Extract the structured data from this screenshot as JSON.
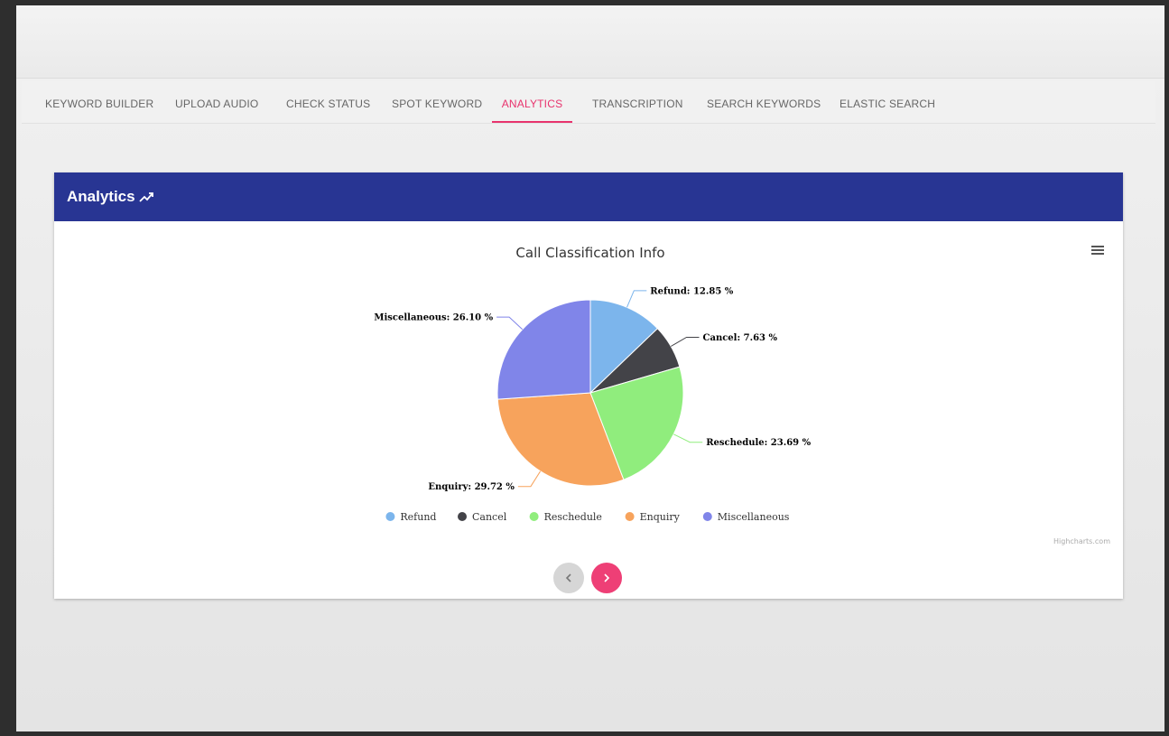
{
  "tabs": [
    {
      "label": "KEYWORD BUILDER"
    },
    {
      "label": "UPLOAD AUDIO"
    },
    {
      "label": "CHECK STATUS"
    },
    {
      "label": "SPOT KEYWORD"
    },
    {
      "label": "ANALYTICS"
    },
    {
      "label": "TRANSCRIPTION"
    },
    {
      "label": "SEARCH KEYWORDS"
    },
    {
      "label": "ELASTIC SEARCH"
    }
  ],
  "active_tab": "ANALYTICS",
  "panel": {
    "title": "Analytics",
    "credit": "Highcharts.com",
    "header_color": "#283593",
    "accent_color": "#e8336d"
  },
  "chart_data": {
    "type": "pie",
    "title": "Call Classification Info",
    "series": [
      {
        "name": "Refund",
        "value": 12.85,
        "label": "Refund: 12.85 %",
        "color": "#7cb5ec"
      },
      {
        "name": "Cancel",
        "value": 7.63,
        "label": "Cancel: 7.63 %",
        "color": "#434348"
      },
      {
        "name": "Reschedule",
        "value": 23.69,
        "label": "Reschedule: 23.69 %",
        "color": "#90ed7d"
      },
      {
        "name": "Enquiry",
        "value": 29.72,
        "label": "Enquiry: 29.72 %",
        "color": "#f7a35c"
      },
      {
        "name": "Miscellaneous",
        "value": 26.1,
        "label": "Miscellaneous: 26.10 %",
        "color": "#8085e9"
      }
    ],
    "legend": "bottom-center"
  }
}
